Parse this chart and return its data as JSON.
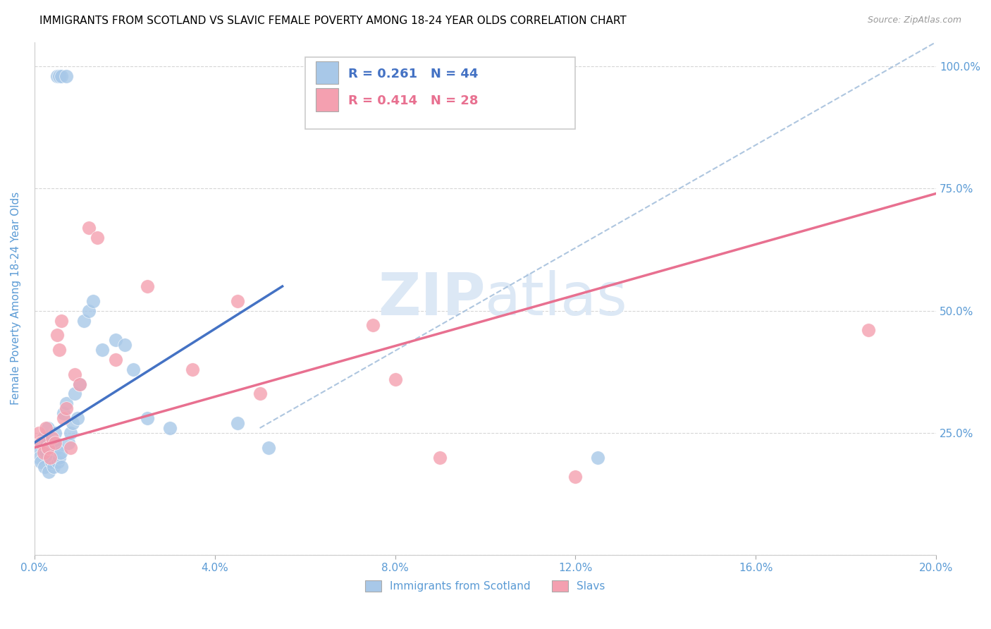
{
  "title": "IMMIGRANTS FROM SCOTLAND VS SLAVIC FEMALE POVERTY AMONG 18-24 YEAR OLDS CORRELATION CHART",
  "source": "Source: ZipAtlas.com",
  "xlabel_ticks": [
    "0.0%",
    "4.0%",
    "8.0%",
    "12.0%",
    "16.0%",
    "20.0%"
  ],
  "xlabel_vals": [
    0.0,
    4.0,
    8.0,
    12.0,
    16.0,
    20.0
  ],
  "ylabel": "Female Poverty Among 18-24 Year Olds",
  "ylabel_ticks": [
    "100.0%",
    "75.0%",
    "50.0%",
    "25.0%",
    ""
  ],
  "ylabel_vals": [
    100,
    75,
    50,
    25,
    0
  ],
  "xlim": [
    0,
    20
  ],
  "ylim": [
    0,
    105
  ],
  "legend1_r": "0.261",
  "legend1_n": "44",
  "legend2_r": "0.414",
  "legend2_n": "28",
  "legend1_color": "#a8c8e8",
  "legend2_color": "#f4a0b0",
  "watermark_zip": "ZIP",
  "watermark_atlas": "atlas",
  "watermark_color": "#dce8f5",
  "blue_scatter_x": [
    0.5,
    0.55,
    0.6,
    0.7,
    0.08,
    0.12,
    0.15,
    0.2,
    0.22,
    0.25,
    0.28,
    0.3,
    0.32,
    0.35,
    0.38,
    0.4,
    0.42,
    0.45,
    0.48,
    0.5,
    0.52,
    0.55,
    0.58,
    0.6,
    0.65,
    0.7,
    0.75,
    0.8,
    0.85,
    0.9,
    0.95,
    1.0,
    1.1,
    1.2,
    1.3,
    1.5,
    1.8,
    2.0,
    2.2,
    2.5,
    3.0,
    4.5,
    5.2,
    12.5
  ],
  "blue_scatter_y": [
    98,
    98,
    98,
    98,
    22,
    20,
    19,
    24,
    18,
    21,
    23,
    26,
    17,
    20,
    19,
    22,
    18,
    25,
    23,
    22,
    19,
    20,
    21,
    18,
    29,
    31,
    23,
    25,
    27,
    33,
    28,
    35,
    48,
    50,
    52,
    42,
    44,
    43,
    38,
    28,
    26,
    27,
    22,
    20
  ],
  "pink_scatter_x": [
    0.1,
    0.15,
    0.2,
    0.25,
    0.3,
    0.35,
    0.4,
    0.45,
    0.5,
    0.55,
    0.6,
    0.65,
    0.7,
    0.8,
    0.9,
    1.0,
    1.2,
    1.4,
    1.8,
    2.5,
    3.5,
    4.5,
    5.0,
    7.5,
    8.0,
    9.0,
    12.0,
    18.5
  ],
  "pink_scatter_y": [
    25,
    23,
    21,
    26,
    22,
    20,
    24,
    23,
    45,
    42,
    48,
    28,
    30,
    22,
    37,
    35,
    67,
    65,
    40,
    55,
    38,
    52,
    33,
    47,
    36,
    20,
    16,
    46
  ],
  "blue_line_x": [
    0.0,
    5.5
  ],
  "blue_line_y": [
    23.0,
    55.0
  ],
  "pink_line_x": [
    0.0,
    20.0
  ],
  "pink_line_y": [
    22.0,
    74.0
  ],
  "diag_line_x": [
    5.0,
    20.0
  ],
  "diag_line_y": [
    26.0,
    105.0
  ],
  "title_fontsize": 11,
  "axis_label_color": "#5b9bd5",
  "tick_label_color": "#5b9bd5",
  "grid_color": "#cccccc",
  "blue_line_color": "#4472c4",
  "pink_line_color": "#e87090",
  "diag_line_color": "#9ab8d8"
}
